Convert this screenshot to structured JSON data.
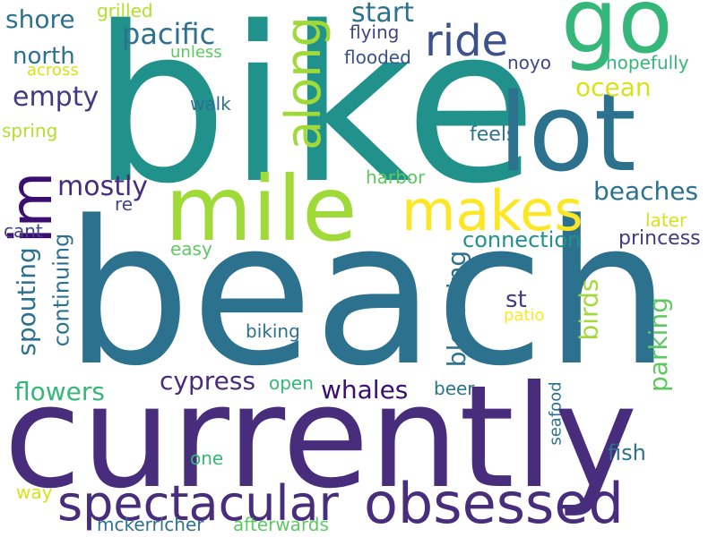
{
  "words": [
    {
      "text": "beach",
      "color": "#2c728e"
    },
    {
      "text": "bike",
      "color": "#21918c"
    },
    {
      "text": "currently",
      "color": "#472d7b"
    },
    {
      "text": "go",
      "color": "#35b779"
    },
    {
      "text": "lot",
      "color": "#2c728e"
    },
    {
      "text": "mile",
      "color": "#a0da39"
    },
    {
      "text": "im",
      "color": "#3b0f70"
    },
    {
      "text": "along",
      "color": "#a0da39"
    },
    {
      "text": "makes",
      "color": "#fde725"
    },
    {
      "text": "spectacular",
      "color": "#472d7b"
    },
    {
      "text": "obsessed",
      "color": "#472d7b"
    },
    {
      "text": "ride",
      "color": "#3b528b"
    },
    {
      "text": "pacific",
      "color": "#2c728e"
    },
    {
      "text": "start",
      "color": "#2c728e"
    },
    {
      "text": "shore",
      "color": "#2c728e"
    },
    {
      "text": "grilled",
      "color": "#b5de2b"
    },
    {
      "text": "flying",
      "color": "#414487"
    },
    {
      "text": "north",
      "color": "#2c728e"
    },
    {
      "text": "across",
      "color": "#d8e219"
    },
    {
      "text": "unless",
      "color": "#5ec962"
    },
    {
      "text": "flooded",
      "color": "#3b528b"
    },
    {
      "text": "noyo",
      "color": "#414487"
    },
    {
      "text": "hopefully",
      "color": "#35b779"
    },
    {
      "text": "empty",
      "color": "#443983"
    },
    {
      "text": "ocean",
      "color": "#d8e219"
    },
    {
      "text": "walk",
      "color": "#2c728e"
    },
    {
      "text": "spring",
      "color": "#b5de2b"
    },
    {
      "text": "feels",
      "color": "#2c728e"
    },
    {
      "text": "harbor",
      "color": "#5ec962"
    },
    {
      "text": "mostly",
      "color": "#472d7b"
    },
    {
      "text": "beaches",
      "color": "#2c728e"
    },
    {
      "text": "re",
      "color": "#414487"
    },
    {
      "text": "later",
      "color": "#d8e219"
    },
    {
      "text": "cant",
      "color": "#414487"
    },
    {
      "text": "connection",
      "color": "#21918c"
    },
    {
      "text": "princess",
      "color": "#443983"
    },
    {
      "text": "easy",
      "color": "#5ec962"
    },
    {
      "text": "spouting",
      "color": "#2c728e"
    },
    {
      "text": "continuing",
      "color": "#2c728e"
    },
    {
      "text": "blooming",
      "color": "#2c728e"
    },
    {
      "text": "birds",
      "color": "#a0da39"
    },
    {
      "text": "parking",
      "color": "#5ec962"
    },
    {
      "text": "st",
      "color": "#443983"
    },
    {
      "text": "patio",
      "color": "#fde725"
    },
    {
      "text": "biking",
      "color": "#2c728e"
    },
    {
      "text": "flowers",
      "color": "#35b779"
    },
    {
      "text": "cypress",
      "color": "#472d7b"
    },
    {
      "text": "open",
      "color": "#35b779"
    },
    {
      "text": "whales",
      "color": "#3b0f70"
    },
    {
      "text": "beer",
      "color": "#2c728e"
    },
    {
      "text": "seafood",
      "color": "#2c728e"
    },
    {
      "text": "fish",
      "color": "#2c728e"
    },
    {
      "text": "one",
      "color": "#35b779"
    },
    {
      "text": "way",
      "color": "#d8e219"
    },
    {
      "text": "mckerricher",
      "color": "#2c728e"
    },
    {
      "text": "afterwards",
      "color": "#5ec962"
    }
  ]
}
